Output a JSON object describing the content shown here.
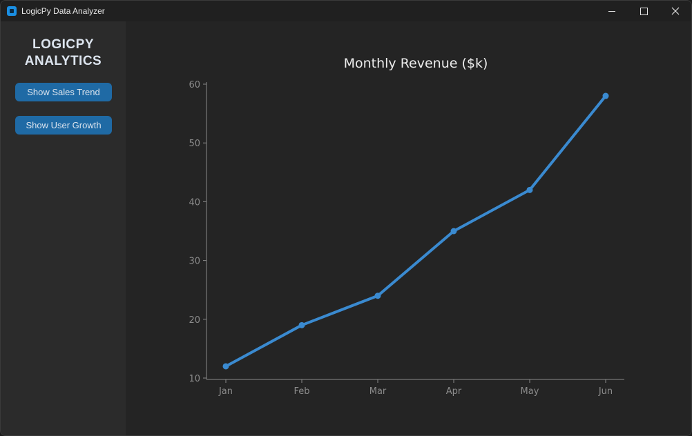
{
  "window": {
    "title": "LogicPy Data Analyzer",
    "controls": {
      "minimize": "minimize",
      "maximize": "maximize",
      "close": "close"
    }
  },
  "sidebar": {
    "brand_line1": "LOGICPY",
    "brand_line2": "ANALYTICS",
    "buttons": [
      {
        "label": "Show Sales Trend"
      },
      {
        "label": "Show User Growth"
      }
    ]
  },
  "colors": {
    "accent": "#1f6aa5",
    "line": "#3a8ad0",
    "sidebar_bg": "#2b2b2b",
    "main_bg": "#242424",
    "titlebar_bg": "#202020",
    "axis": "#8a8a8a",
    "tick_label": "#8c8c8c",
    "title_text": "#ececec"
  },
  "chart_data": {
    "type": "line",
    "title": "Monthly Revenue ($k)",
    "xlabel": "",
    "ylabel": "",
    "categories": [
      "Jan",
      "Feb",
      "Mar",
      "Apr",
      "May",
      "Jun"
    ],
    "series": [
      {
        "name": "Revenue",
        "values": [
          12,
          19,
          24,
          35,
          42,
          58
        ],
        "marker": "circle"
      }
    ],
    "yticks": [
      10,
      20,
      30,
      40,
      50,
      60
    ],
    "ylim": [
      10,
      60
    ],
    "grid": false,
    "legend": "none"
  }
}
